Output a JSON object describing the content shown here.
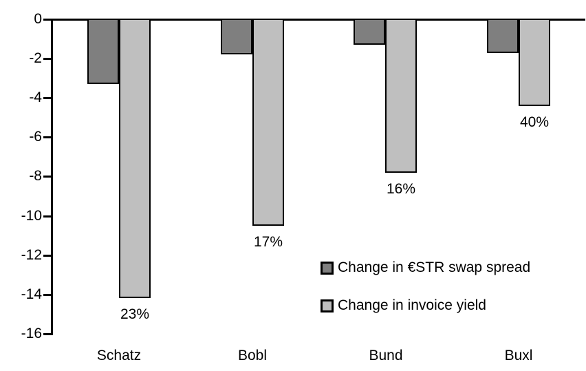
{
  "chart_data": {
    "type": "bar",
    "orientation": "vertical-negative",
    "categories": [
      "Schatz",
      "Bobl",
      "Bund",
      "Buxl"
    ],
    "series": [
      {
        "name": "Change in €STR swap spread",
        "color": "#7F7F7F",
        "values": [
          -3.3,
          -1.8,
          -1.3,
          -1.7
        ]
      },
      {
        "name": "Change in invoice yield",
        "color": "#BFBFBF",
        "values": [
          -14.2,
          -10.5,
          -7.8,
          -4.4
        ],
        "point_labels": [
          "23%",
          "17%",
          "16%",
          "40%"
        ]
      }
    ],
    "title": "",
    "xlabel": "",
    "ylabel": "",
    "ylim": [
      -16,
      0
    ],
    "ytick_labels": [
      "0",
      "-2",
      "-4",
      "-6",
      "-8",
      "-10",
      "-12",
      "-14",
      "-16"
    ],
    "grid": false,
    "legend_position": "inside-center-right",
    "bar_border_color": "#000000",
    "axis_color": "#000000",
    "text_color": "#000000"
  }
}
